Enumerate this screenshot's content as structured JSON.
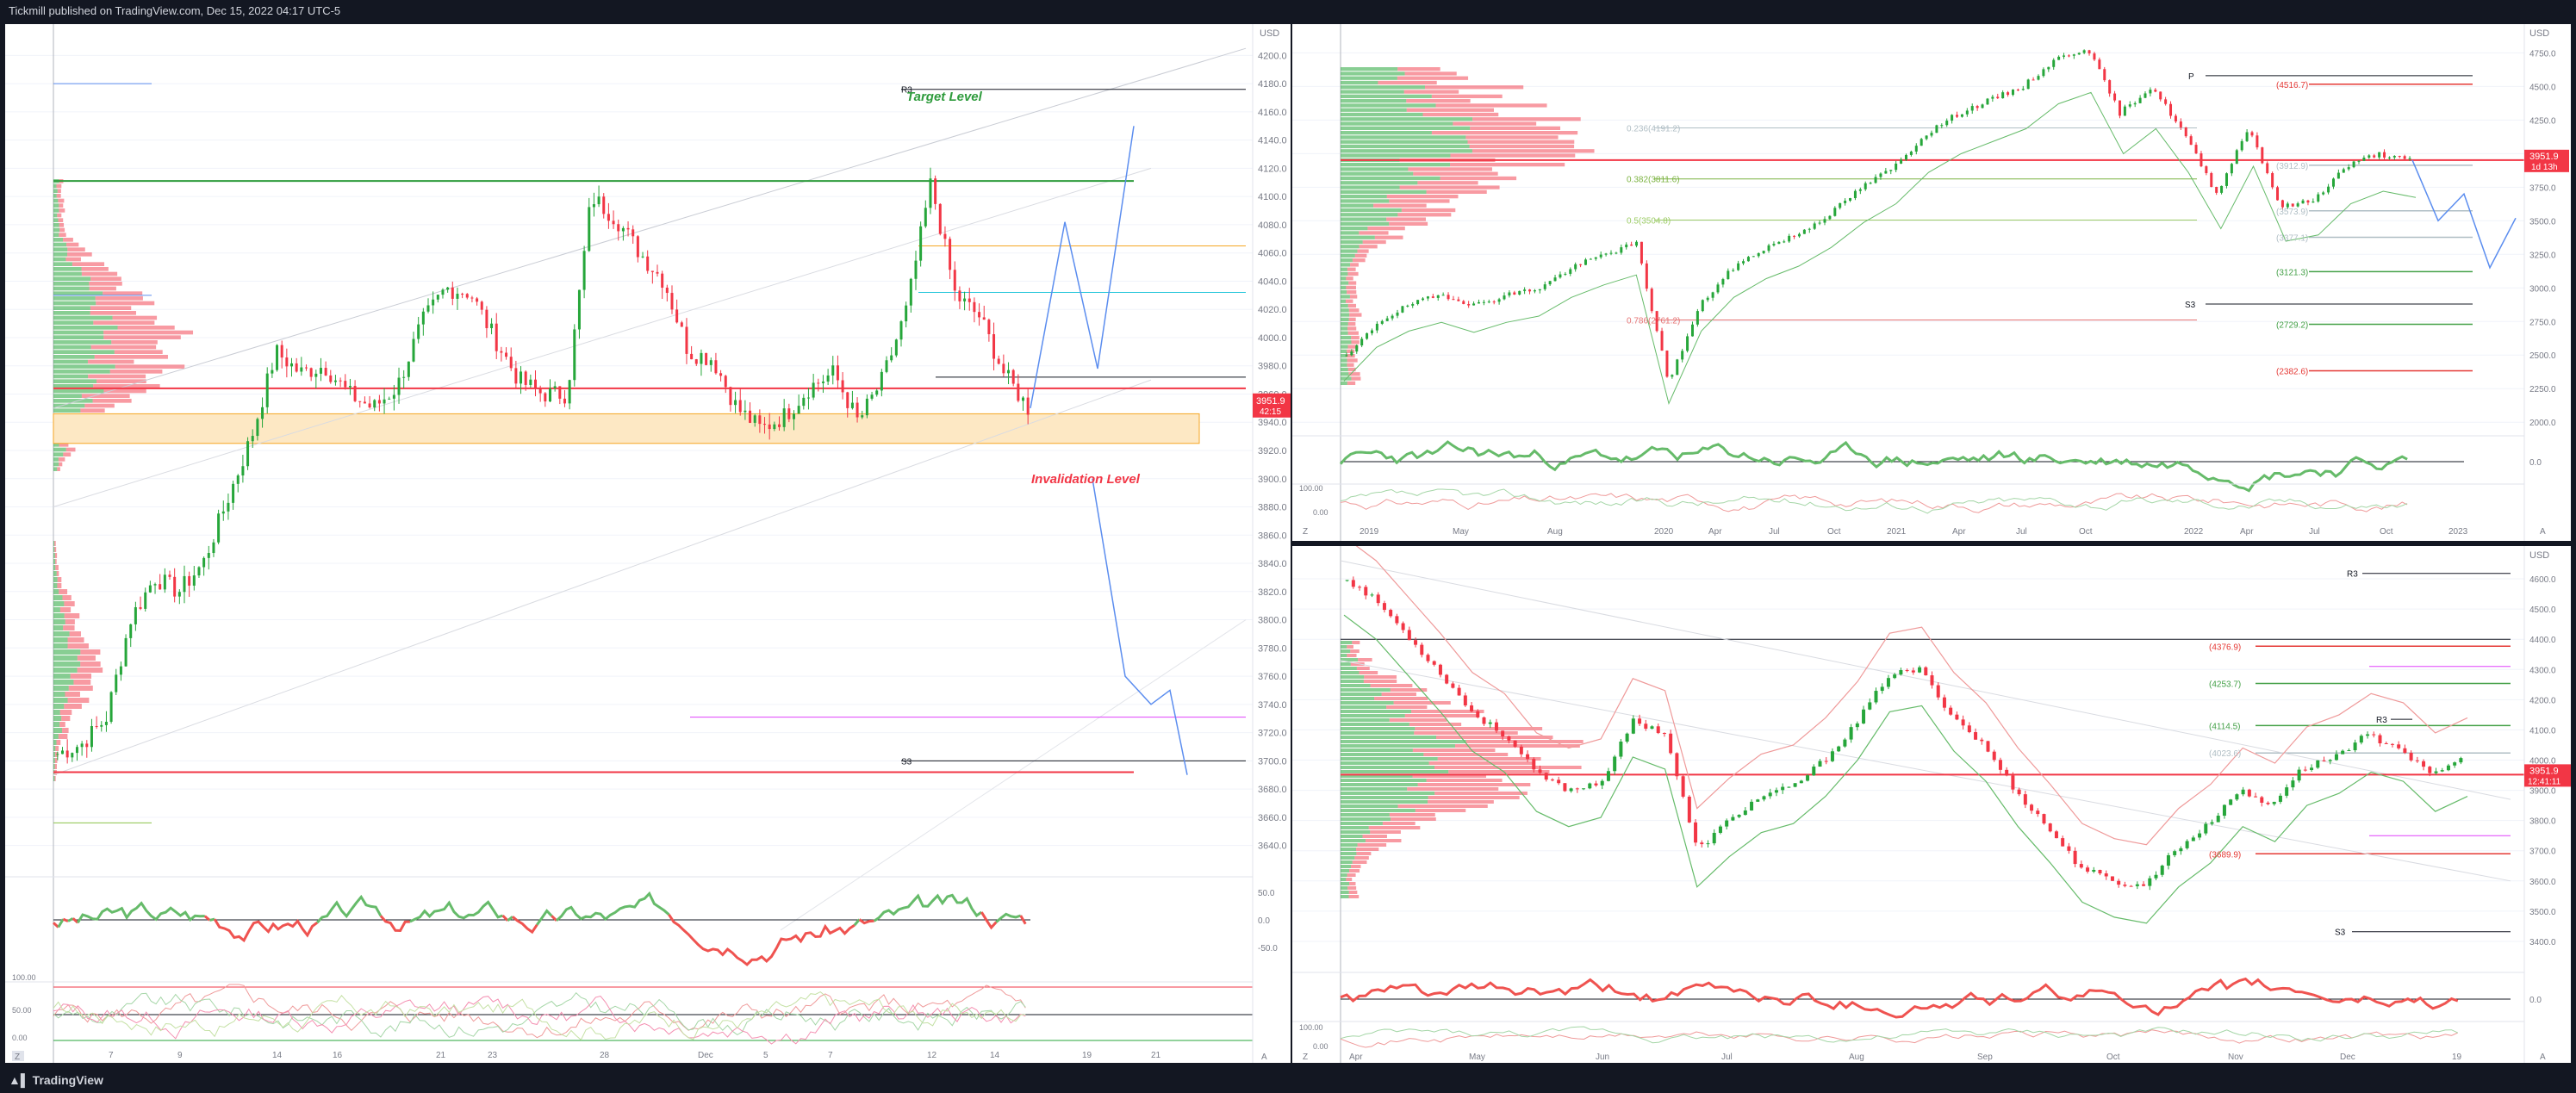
{
  "header": {
    "meta": "Tickmill published on TradingView.com, Dec 15, 2022 04:17 UTC-5"
  },
  "footer": {
    "brand": "TradingView"
  },
  "colors": {
    "up": "#26a63a",
    "down": "#f23645",
    "price_line": "#f23645",
    "green_line": "#2e9b3c",
    "blue_path": "#5b8def",
    "orange_band": "#f7c27a",
    "magenta": "#e040fb",
    "grid": "#f0f3fa",
    "axis_text": "#787b86",
    "bg": "#ffffff"
  },
  "left_chart": {
    "price_axis": [
      "4200.0",
      "4180.0",
      "4160.0",
      "4140.0",
      "4120.0",
      "4100.0",
      "4080.0",
      "4060.0",
      "4040.0",
      "4020.0",
      "4000.0",
      "3980.0",
      "3960.0",
      "3940.0",
      "3920.0",
      "3900.0",
      "3880.0",
      "3860.0",
      "3840.0",
      "3820.0",
      "3800.0",
      "3780.0",
      "3760.0",
      "3740.0",
      "3720.0",
      "3700.0",
      "3680.0",
      "3660.0",
      "3640.0"
    ],
    "time_axis": [
      "7",
      "9",
      "14",
      "16",
      "21",
      "23",
      "28",
      "Dec",
      "5",
      "7",
      "12",
      "14",
      "19",
      "21"
    ],
    "usd": "USD",
    "last_price": "3951.9",
    "countdown": "42:15",
    "labels": {
      "target": "Target Level",
      "invalidation": "Invalidation Level",
      "r3": "R3",
      "s3": "S3"
    },
    "osc1_axis": [
      "50.0",
      "0.0",
      "-50.0"
    ],
    "osc2_axis": [
      "100.00",
      "50.00",
      "0.00"
    ],
    "corner_z": "Z",
    "corner_a": "A"
  },
  "weekly_chart": {
    "price_axis": [
      "4750.0",
      "4500.0",
      "4250.0",
      "4000.0",
      "3750.0",
      "3500.0",
      "3250.0",
      "3000.0",
      "2750.0",
      "2500.0",
      "2250.0",
      "2000.0"
    ],
    "time_axis": [
      "2019",
      "May",
      "Aug",
      "2020",
      "Apr",
      "Jul",
      "Oct",
      "2021",
      "Apr",
      "Jul",
      "Oct",
      "2022",
      "Apr",
      "Jul",
      "Oct",
      "2023"
    ],
    "usd": "USD",
    "last_price": "3951.9",
    "countdown": "1d 13h",
    "fib_labels": [
      "0.236(4191.2)",
      "0.382(3811.6)",
      "0.5(3504.8)",
      "0.786(2761.2)"
    ],
    "pivot_labels": [
      "(4516.7)",
      "(3912.9)",
      "(3573.9)",
      "(3377.1)",
      "(3121.3)",
      "(2729.2)",
      "(2382.6)"
    ],
    "marker_p": "P",
    "marker_s3": "S3",
    "osc1_axis": [
      "0.0"
    ],
    "osc2_axis": [
      "100.00",
      "0.00"
    ],
    "corner_z": "Z",
    "corner_a": "A"
  },
  "daily_chart": {
    "price_axis": [
      "4600.0",
      "4500.0",
      "4400.0",
      "4300.0",
      "4200.0",
      "4100.0",
      "4000.0",
      "3900.0",
      "3800.0",
      "3700.0",
      "3600.0",
      "3500.0",
      "3400.0"
    ],
    "time_axis": [
      "Apr",
      "May",
      "Jun",
      "Jul",
      "Aug",
      "Sep",
      "Oct",
      "Nov",
      "Dec",
      "19"
    ],
    "usd": "USD",
    "last_price": "3951.9",
    "countdown": "12:41:11",
    "pivot_labels": [
      "(4376.9)",
      "(4253.7)",
      "(4114.5)",
      "(4023.6)",
      "(3689.9)"
    ],
    "marker_r3": "R3",
    "marker_s3": "S3",
    "osc1_axis": [
      "0.0"
    ],
    "osc2_axis": [
      "100.00",
      "0.00"
    ],
    "corner_z": "Z",
    "corner_a": "A"
  }
}
